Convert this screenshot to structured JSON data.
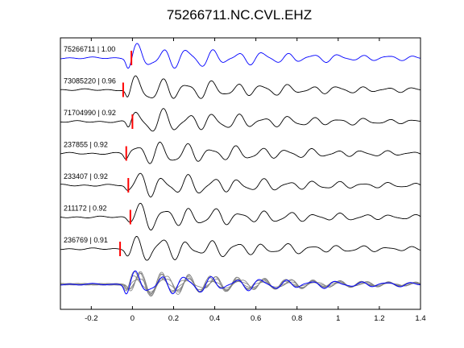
{
  "chart_data": {
    "type": "line",
    "title": "75266711.NC.CVL.EHZ",
    "xlabel": "",
    "ylabel": "",
    "xlim": [
      -0.35,
      1.4
    ],
    "xticks": [
      -0.2,
      0,
      0.2,
      0.4,
      0.6,
      0.8,
      1,
      1.2,
      1.4
    ],
    "xtick_labels": [
      "-0.2",
      "0",
      "0.2",
      "0.4",
      "0.6",
      "0.8",
      "1",
      "1.2",
      "1.4"
    ],
    "grid": false,
    "colors": {
      "reference": "#0000ff",
      "trace": "#000000",
      "pick": "#ff0000",
      "stack": "#808080"
    },
    "series": [
      {
        "name": "75266711 | 1.00",
        "pick_time": -0.005,
        "reference": true
      },
      {
        "name": "73085220 | 0.96",
        "pick_time": -0.045
      },
      {
        "name": "71704990 | 0.92",
        "pick_time": 0.0
      },
      {
        "name": "237855 | 0.92",
        "pick_time": -0.03
      },
      {
        "name": "233407 | 0.92",
        "pick_time": -0.02
      },
      {
        "name": "211172 | 0.92",
        "pick_time": -0.01
      },
      {
        "name": "236769 | 0.91",
        "pick_time": -0.06
      }
    ],
    "stack": {
      "name": "",
      "count": 7
    }
  }
}
